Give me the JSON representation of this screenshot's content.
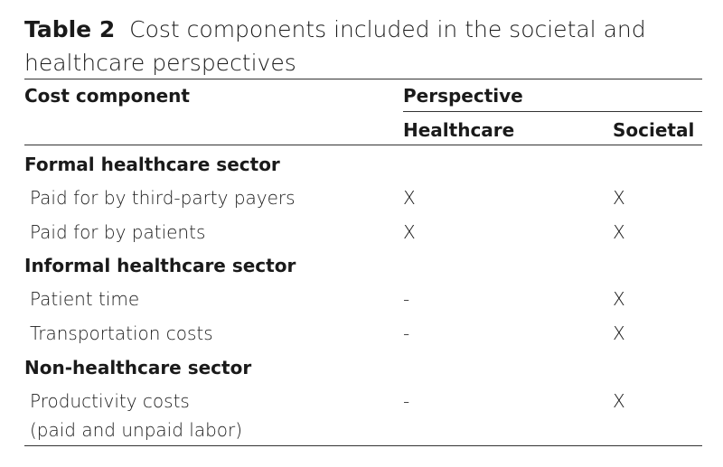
{
  "caption": {
    "label": "Table 2",
    "text": "Cost components included in the societal and healthcare perspectives"
  },
  "headers": {
    "component": "Cost component",
    "perspective": "Perspective",
    "healthcare": "Healthcare",
    "societal": "Societal"
  },
  "sections": [
    {
      "title": "Formal healthcare sector",
      "rows": [
        {
          "name": "Paid for by third-party payers",
          "healthcare": "X",
          "societal": "X"
        },
        {
          "name": "Paid for by patients",
          "healthcare": "X",
          "societal": "X"
        }
      ]
    },
    {
      "title": "Informal healthcare sector",
      "rows": [
        {
          "name": "Patient time",
          "healthcare": "-",
          "societal": "X"
        },
        {
          "name": "Transportation costs",
          "healthcare": "-",
          "societal": "X"
        }
      ]
    },
    {
      "title": "Non-healthcare sector",
      "rows": [
        {
          "name": "Productivity costs",
          "name2": "(paid and unpaid labor)",
          "healthcare": "-",
          "societal": "X"
        }
      ]
    }
  ]
}
